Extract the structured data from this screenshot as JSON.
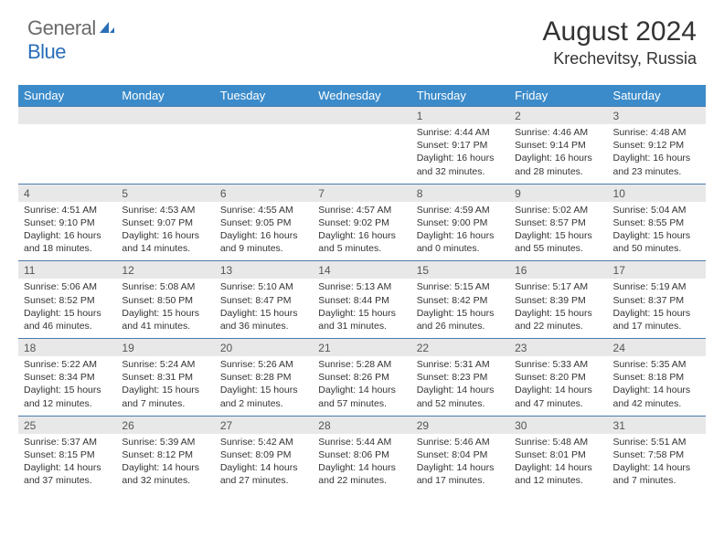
{
  "brand": {
    "part1": "General",
    "part2": "Blue"
  },
  "title": {
    "month": "August 2024",
    "location": "Krechevitsy, Russia"
  },
  "colors": {
    "header_bg": "#3b8bca",
    "header_text": "#ffffff",
    "daynum_bg": "#e8e8e8",
    "daynum_text": "#555555",
    "border": "#4a7bad",
    "body_text": "#333333",
    "logo_gray": "#6b6b6b",
    "logo_blue": "#2a6eb8"
  },
  "day_headers": [
    "Sunday",
    "Monday",
    "Tuesday",
    "Wednesday",
    "Thursday",
    "Friday",
    "Saturday"
  ],
  "weeks": [
    {
      "nums": [
        "",
        "",
        "",
        "",
        "1",
        "2",
        "3"
      ],
      "details": [
        "",
        "",
        "",
        "",
        "Sunrise: 4:44 AM\nSunset: 9:17 PM\nDaylight: 16 hours and 32 minutes.",
        "Sunrise: 4:46 AM\nSunset: 9:14 PM\nDaylight: 16 hours and 28 minutes.",
        "Sunrise: 4:48 AM\nSunset: 9:12 PM\nDaylight: 16 hours and 23 minutes."
      ]
    },
    {
      "nums": [
        "4",
        "5",
        "6",
        "7",
        "8",
        "9",
        "10"
      ],
      "details": [
        "Sunrise: 4:51 AM\nSunset: 9:10 PM\nDaylight: 16 hours and 18 minutes.",
        "Sunrise: 4:53 AM\nSunset: 9:07 PM\nDaylight: 16 hours and 14 minutes.",
        "Sunrise: 4:55 AM\nSunset: 9:05 PM\nDaylight: 16 hours and 9 minutes.",
        "Sunrise: 4:57 AM\nSunset: 9:02 PM\nDaylight: 16 hours and 5 minutes.",
        "Sunrise: 4:59 AM\nSunset: 9:00 PM\nDaylight: 16 hours and 0 minutes.",
        "Sunrise: 5:02 AM\nSunset: 8:57 PM\nDaylight: 15 hours and 55 minutes.",
        "Sunrise: 5:04 AM\nSunset: 8:55 PM\nDaylight: 15 hours and 50 minutes."
      ]
    },
    {
      "nums": [
        "11",
        "12",
        "13",
        "14",
        "15",
        "16",
        "17"
      ],
      "details": [
        "Sunrise: 5:06 AM\nSunset: 8:52 PM\nDaylight: 15 hours and 46 minutes.",
        "Sunrise: 5:08 AM\nSunset: 8:50 PM\nDaylight: 15 hours and 41 minutes.",
        "Sunrise: 5:10 AM\nSunset: 8:47 PM\nDaylight: 15 hours and 36 minutes.",
        "Sunrise: 5:13 AM\nSunset: 8:44 PM\nDaylight: 15 hours and 31 minutes.",
        "Sunrise: 5:15 AM\nSunset: 8:42 PM\nDaylight: 15 hours and 26 minutes.",
        "Sunrise: 5:17 AM\nSunset: 8:39 PM\nDaylight: 15 hours and 22 minutes.",
        "Sunrise: 5:19 AM\nSunset: 8:37 PM\nDaylight: 15 hours and 17 minutes."
      ]
    },
    {
      "nums": [
        "18",
        "19",
        "20",
        "21",
        "22",
        "23",
        "24"
      ],
      "details": [
        "Sunrise: 5:22 AM\nSunset: 8:34 PM\nDaylight: 15 hours and 12 minutes.",
        "Sunrise: 5:24 AM\nSunset: 8:31 PM\nDaylight: 15 hours and 7 minutes.",
        "Sunrise: 5:26 AM\nSunset: 8:28 PM\nDaylight: 15 hours and 2 minutes.",
        "Sunrise: 5:28 AM\nSunset: 8:26 PM\nDaylight: 14 hours and 57 minutes.",
        "Sunrise: 5:31 AM\nSunset: 8:23 PM\nDaylight: 14 hours and 52 minutes.",
        "Sunrise: 5:33 AM\nSunset: 8:20 PM\nDaylight: 14 hours and 47 minutes.",
        "Sunrise: 5:35 AM\nSunset: 8:18 PM\nDaylight: 14 hours and 42 minutes."
      ]
    },
    {
      "nums": [
        "25",
        "26",
        "27",
        "28",
        "29",
        "30",
        "31"
      ],
      "details": [
        "Sunrise: 5:37 AM\nSunset: 8:15 PM\nDaylight: 14 hours and 37 minutes.",
        "Sunrise: 5:39 AM\nSunset: 8:12 PM\nDaylight: 14 hours and 32 minutes.",
        "Sunrise: 5:42 AM\nSunset: 8:09 PM\nDaylight: 14 hours and 27 minutes.",
        "Sunrise: 5:44 AM\nSunset: 8:06 PM\nDaylight: 14 hours and 22 minutes.",
        "Sunrise: 5:46 AM\nSunset: 8:04 PM\nDaylight: 14 hours and 17 minutes.",
        "Sunrise: 5:48 AM\nSunset: 8:01 PM\nDaylight: 14 hours and 12 minutes.",
        "Sunrise: 5:51 AM\nSunset: 7:58 PM\nDaylight: 14 hours and 7 minutes."
      ]
    }
  ]
}
